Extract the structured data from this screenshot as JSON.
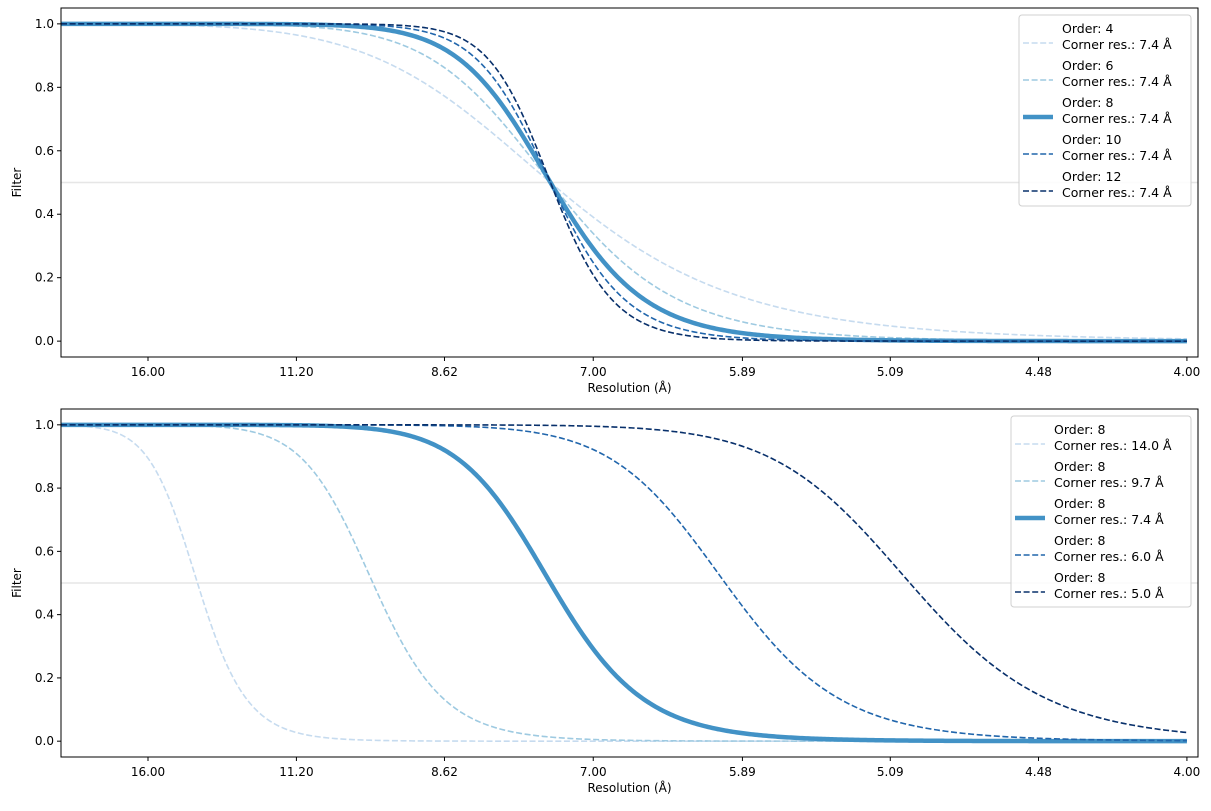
{
  "chart_data": [
    {
      "type": "line",
      "title": "",
      "xlabel": "Resolution (Å)",
      "ylabel": "Filter",
      "x_scale": "spatial frequency (1/Å), labelled as resolution",
      "xlim_freq": [
        0.0468,
        0.252
      ],
      "ylim": [
        -0.05,
        1.05
      ],
      "xticks": [
        "16.00",
        "11.20",
        "8.62",
        "7.00",
        "5.89",
        "5.09",
        "4.48",
        "4.00"
      ],
      "yticks": [
        "0.0",
        "0.2",
        "0.4",
        "0.6",
        "0.8",
        "1.0"
      ],
      "hline": 0.5,
      "filter": "1 / (1 + (f/fc)^(2*order))",
      "legend_position": "top-right",
      "series": [
        {
          "order": 4,
          "corner_res": 7.4,
          "label1": "Order: 4",
          "label2": "Corner res.: 7.4 Å",
          "color": "#c6dbef",
          "style": "dashed"
        },
        {
          "order": 6,
          "corner_res": 7.4,
          "label1": "Order: 6",
          "label2": "Corner res.: 7.4 Å",
          "color": "#9ecae1",
          "style": "dashed"
        },
        {
          "order": 8,
          "corner_res": 7.4,
          "label1": "Order: 8",
          "label2": "Corner res.: 7.4 Å",
          "color": "#4292c6",
          "style": "solid"
        },
        {
          "order": 10,
          "corner_res": 7.4,
          "label1": "Order: 10",
          "label2": "Corner res.: 7.4 Å",
          "color": "#2166ac",
          "style": "dashed"
        },
        {
          "order": 12,
          "corner_res": 7.4,
          "label1": "Order: 12",
          "label2": "Corner res.: 7.4 Å",
          "color": "#08306b",
          "style": "dashed"
        }
      ]
    },
    {
      "type": "line",
      "title": "",
      "xlabel": "Resolution (Å)",
      "ylabel": "Filter",
      "x_scale": "spatial frequency (1/Å), labelled as resolution",
      "xlim_freq": [
        0.0468,
        0.252
      ],
      "ylim": [
        -0.05,
        1.05
      ],
      "xticks": [
        "16.00",
        "11.20",
        "8.62",
        "7.00",
        "5.89",
        "5.09",
        "4.48",
        "4.00"
      ],
      "yticks": [
        "0.0",
        "0.2",
        "0.4",
        "0.6",
        "0.8",
        "1.0"
      ],
      "hline": 0.5,
      "filter": "1 / (1 + (f/fc)^(2*order))",
      "legend_position": "top-right",
      "series": [
        {
          "order": 8,
          "corner_res": 14.0,
          "label1": "Order: 8",
          "label2": "Corner res.: 14.0 Å",
          "color": "#c6dbef",
          "style": "dashed"
        },
        {
          "order": 8,
          "corner_res": 9.7,
          "label1": "Order: 8",
          "label2": "Corner res.: 9.7 Å",
          "color": "#9ecae1",
          "style": "dashed"
        },
        {
          "order": 8,
          "corner_res": 7.4,
          "label1": "Order: 8",
          "label2": "Corner res.: 7.4 Å",
          "color": "#4292c6",
          "style": "solid"
        },
        {
          "order": 8,
          "corner_res": 6.0,
          "label1": "Order: 8",
          "label2": "Corner res.: 6.0 Å",
          "color": "#2166ac",
          "style": "dashed"
        },
        {
          "order": 8,
          "corner_res": 5.0,
          "label1": "Order: 8",
          "label2": "Corner res.: 5.0 Å",
          "color": "#08306b",
          "style": "dashed"
        }
      ]
    }
  ]
}
